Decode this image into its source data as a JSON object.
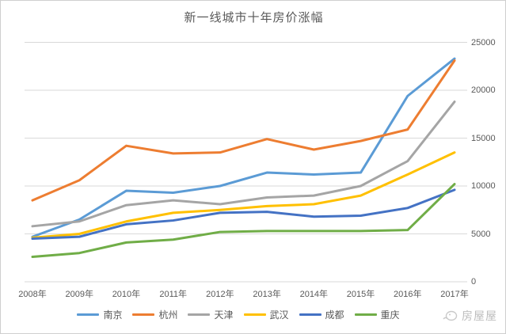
{
  "title": "新一线城市十年房价涨幅",
  "watermark": {
    "text": "房屋屋"
  },
  "chart_data": {
    "type": "line",
    "title": "新一线城市十年房价涨幅",
    "categories": [
      "2008年",
      "2009年",
      "2010年",
      "2011年",
      "2012年",
      "2013年",
      "2014年",
      "2015年",
      "2016年",
      "2017年"
    ],
    "series": [
      {
        "name": "南京",
        "color": "#5B9BD5",
        "values": [
          4700,
          6500,
          9500,
          9300,
          10000,
          11400,
          11200,
          11400,
          19400,
          23300
        ]
      },
      {
        "name": "杭州",
        "color": "#ED7D31",
        "values": [
          8500,
          10600,
          14200,
          13400,
          13500,
          14900,
          13800,
          14700,
          15900,
          23100
        ]
      },
      {
        "name": "天津",
        "color": "#A5A5A5",
        "values": [
          5800,
          6300,
          8000,
          8500,
          8100,
          8800,
          9000,
          10000,
          12600,
          18800
        ]
      },
      {
        "name": "武汉",
        "color": "#FFC000",
        "values": [
          4600,
          5000,
          6300,
          7200,
          7500,
          7900,
          8100,
          9000,
          11200,
          13500
        ]
      },
      {
        "name": "成都",
        "color": "#4472C4",
        "values": [
          4500,
          4700,
          6000,
          6400,
          7200,
          7300,
          6800,
          6900,
          7700,
          9600
        ]
      },
      {
        "name": "重庆",
        "color": "#70AD47",
        "values": [
          2600,
          3000,
          4100,
          4400,
          5200,
          5300,
          5300,
          5300,
          5400,
          10200
        ]
      }
    ],
    "xlabel": "",
    "ylabel": "",
    "ylim": [
      0,
      25000
    ],
    "y_ticks": [
      0,
      5000,
      10000,
      15000,
      20000,
      25000
    ],
    "grid": true,
    "gridline_color": "#D9D9D9",
    "legend_position": "bottom"
  }
}
